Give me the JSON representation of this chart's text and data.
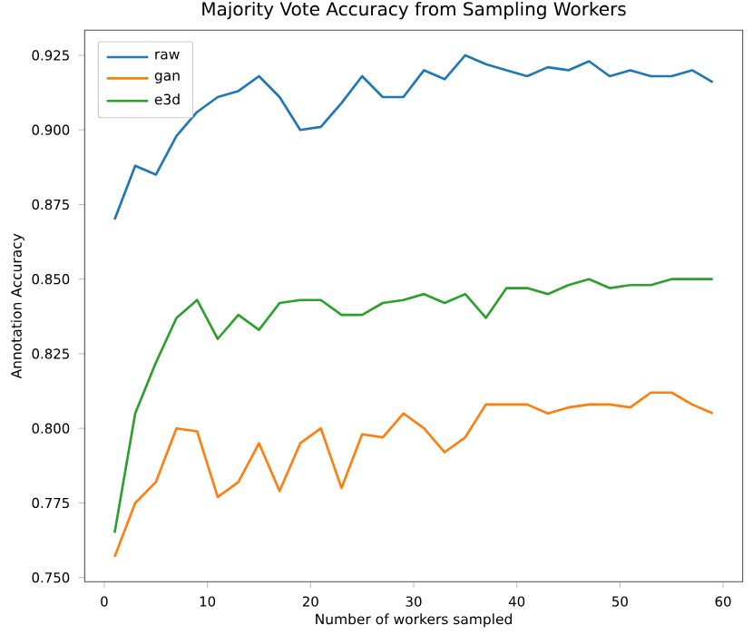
{
  "chart_data": {
    "type": "line",
    "title": "Majority Vote Accuracy from Sampling Workers",
    "xlabel": "Number of workers sampled",
    "ylabel": "Annotation Accuracy",
    "x": [
      1,
      3,
      5,
      7,
      9,
      11,
      13,
      15,
      17,
      19,
      21,
      23,
      25,
      27,
      29,
      31,
      33,
      35,
      37,
      39,
      41,
      43,
      45,
      47,
      49,
      51,
      53,
      55,
      57,
      59
    ],
    "series": [
      {
        "name": "raw",
        "color": "#1f77b4",
        "values": [
          0.87,
          0.888,
          0.885,
          0.898,
          0.906,
          0.911,
          0.913,
          0.918,
          0.911,
          0.9,
          0.901,
          0.909,
          0.918,
          0.911,
          0.911,
          0.92,
          0.917,
          0.925,
          0.922,
          0.92,
          0.918,
          0.921,
          0.92,
          0.923,
          0.918,
          0.92,
          0.918,
          0.918,
          0.92,
          0.916
        ]
      },
      {
        "name": "gan",
        "color": "#ff7f0e",
        "values": [
          0.757,
          0.775,
          0.782,
          0.8,
          0.799,
          0.777,
          0.782,
          0.795,
          0.779,
          0.795,
          0.8,
          0.78,
          0.798,
          0.797,
          0.805,
          0.8,
          0.792,
          0.797,
          0.808,
          0.808,
          0.808,
          0.805,
          0.807,
          0.808,
          0.808,
          0.807,
          0.812,
          0.812,
          0.808,
          0.805
        ]
      },
      {
        "name": "e3d",
        "color": "#2ca02c",
        "values": [
          0.765,
          0.805,
          0.822,
          0.837,
          0.843,
          0.83,
          0.838,
          0.833,
          0.842,
          0.843,
          0.843,
          0.838,
          0.838,
          0.842,
          0.843,
          0.845,
          0.842,
          0.845,
          0.837,
          0.847,
          0.847,
          0.845,
          0.848,
          0.85,
          0.847,
          0.848,
          0.848,
          0.85,
          0.85,
          0.85
        ]
      }
    ],
    "xlim": [
      -1.9,
      61.9
    ],
    "ylim": [
      0.7486,
      0.9334
    ],
    "xticks": [
      0,
      10,
      20,
      30,
      40,
      50,
      60
    ],
    "yticks": [
      {
        "value": 0.75,
        "label": "0.750"
      },
      {
        "value": 0.775,
        "label": "0.775"
      },
      {
        "value": 0.8,
        "label": "0.800"
      },
      {
        "value": 0.825,
        "label": "0.825"
      },
      {
        "value": 0.85,
        "label": "0.850"
      },
      {
        "value": 0.875,
        "label": "0.875"
      },
      {
        "value": 0.9,
        "label": "0.900"
      },
      {
        "value": 0.925,
        "label": "0.925"
      }
    ],
    "legend": "top left",
    "grid": false
  }
}
